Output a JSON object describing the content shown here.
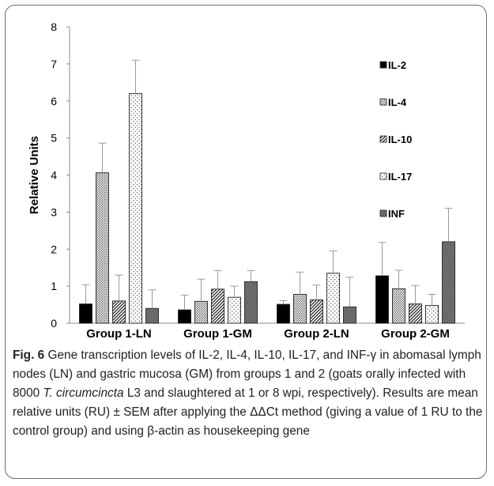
{
  "chart_data": {
    "type": "bar",
    "ylabel": "Relative Units",
    "ylim": [
      0,
      8
    ],
    "yticks": [
      0,
      1,
      2,
      3,
      4,
      5,
      6,
      7,
      8
    ],
    "legend_position": "top-right",
    "categories": [
      "Group 1-LN",
      "Group 1-GM",
      "Group 2-LN",
      "Group 2-GM"
    ],
    "series": [
      {
        "name": "IL-2",
        "pattern": "solid",
        "color": "#000000",
        "values": [
          0.52,
          0.36,
          0.51,
          1.28
        ],
        "errors": [
          0.52,
          0.4,
          0.1,
          0.9
        ]
      },
      {
        "name": "IL-4",
        "pattern": "fine-dots",
        "color": "#555555",
        "values": [
          4.06,
          0.59,
          0.78,
          0.93
        ],
        "errors": [
          0.8,
          0.6,
          0.6,
          0.5
        ]
      },
      {
        "name": "IL-10",
        "pattern": "diagonal-stripes",
        "color": "#333333",
        "values": [
          0.6,
          0.92,
          0.63,
          0.52
        ],
        "errors": [
          0.7,
          0.5,
          0.4,
          0.5
        ]
      },
      {
        "name": "IL-17",
        "pattern": "sparse-dots",
        "color": "#666666",
        "values": [
          6.2,
          0.7,
          1.35,
          0.48
        ],
        "errors": [
          0.9,
          0.3,
          0.6,
          0.3
        ]
      },
      {
        "name": "INF",
        "pattern": "cross-hatch",
        "color": "#777777",
        "values": [
          0.4,
          1.12,
          0.44,
          2.2
        ],
        "errors": [
          0.5,
          0.3,
          0.8,
          0.9
        ]
      }
    ]
  },
  "caption": {
    "label": "Fig. 6",
    "text_part1": "Gene transcription levels of IL-2, IL-4, IL-10, IL-17, and INF-γ in abomasal lymph nodes (LN) and gastric mucosa (GM) from groups 1 and 2 (goats orally infected with 8000 ",
    "species": "T. circumcincta",
    "text_part2": " L3 and slaughtered at 1 or 8 wpi, respectively). Results are mean relative units (RU) ± SEM after applying the ΔΔCt method (giving a value of 1 RU to the control group) and using β-actin as housekeeping gene"
  }
}
